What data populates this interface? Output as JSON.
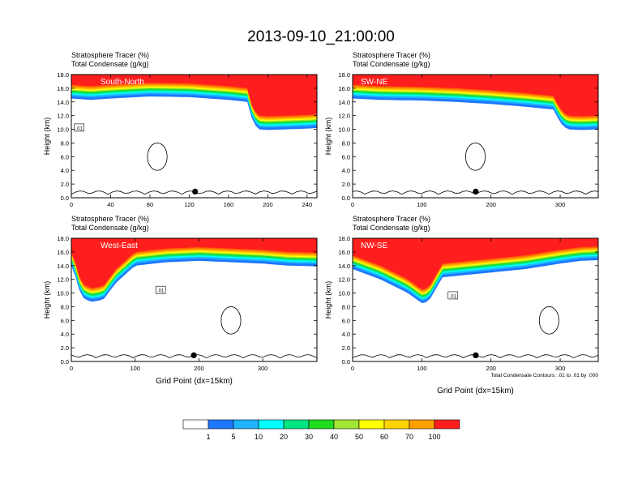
{
  "title": "2013-09-10_21:00:00",
  "colors": [
    "#ffffff",
    "#1e78ff",
    "#1eb4ff",
    "#00ffff",
    "#00e682",
    "#1edc1e",
    "#a0e632",
    "#ffff00",
    "#ffd200",
    "#ffa000",
    "#ff6400",
    "#ff1e1e"
  ],
  "colorbar": {
    "labels": [
      "1",
      "5",
      "10",
      "20",
      "30",
      "40",
      "50",
      "60",
      "70",
      "100"
    ]
  },
  "chart_data": [
    {
      "type": "contour",
      "label1": "Stratosphere Tracer   (%)",
      "label2": "Total Condensate   (g/kg)",
      "panel_tag": "South-North",
      "ylabel": "Height (km)",
      "xlabel": "",
      "xlim": [
        0,
        250
      ],
      "ylim": [
        0,
        18
      ],
      "xticks": [
        "0",
        "40",
        "80",
        "120",
        "160",
        "200",
        "240"
      ],
      "xtick_values": [
        0,
        40,
        80,
        120,
        160,
        200,
        240
      ],
      "yticks": [
        "0.0",
        "2.0",
        "4.0",
        "6.0",
        "8.0",
        "10.0",
        "12.0",
        "14.0",
        "16.0",
        "18.0"
      ],
      "marker_x": 126,
      "contour_label": ".01",
      "contour_label_at": [
        8,
        10.2
      ],
      "tropopause": [
        [
          0,
          15
        ],
        [
          20,
          14.8
        ],
        [
          40,
          15
        ],
        [
          80,
          15.3
        ],
        [
          120,
          15.2
        ],
        [
          140,
          15
        ],
        [
          160,
          14.8
        ],
        [
          180,
          14.5
        ],
        [
          184,
          11.8
        ],
        [
          190,
          10.5
        ],
        [
          200,
          10.4
        ],
        [
          220,
          10.5
        ],
        [
          240,
          10.6
        ],
        [
          250,
          10.7
        ]
      ]
    },
    {
      "type": "contour",
      "label1": "Stratosphere Tracer   (%)",
      "label2": "Total Condensate   (g/kg)",
      "panel_tag": "SW-NE",
      "ylabel": "Height (km)",
      "xlabel": "",
      "xlim": [
        0,
        355
      ],
      "ylim": [
        0,
        18
      ],
      "xticks": [
        "0",
        "100",
        "200",
        "300"
      ],
      "xtick_values": [
        0,
        100,
        200,
        300
      ],
      "yticks": [
        "0.0",
        "2.0",
        "4.0",
        "6.0",
        "8.0",
        "10.0",
        "12.0",
        "14.0",
        "16.0",
        "18.0"
      ],
      "marker_x": 178,
      "contour_label": "",
      "contour_label_at": [
        0,
        0
      ],
      "tropopause": [
        [
          0,
          15
        ],
        [
          40,
          14.8
        ],
        [
          100,
          14.7
        ],
        [
          150,
          14.5
        ],
        [
          200,
          14.2
        ],
        [
          250,
          13.8
        ],
        [
          290,
          13.4
        ],
        [
          300,
          11.5
        ],
        [
          310,
          10.5
        ],
        [
          330,
          10.4
        ],
        [
          355,
          10.5
        ]
      ]
    },
    {
      "type": "contour",
      "label1": "Stratosphere Tracer   (%)",
      "label2": "Total Condensate   (g/kg)",
      "panel_tag": "West-East",
      "ylabel": "Height (km)",
      "xlabel": "Grid Point (dx=15km)",
      "xlim": [
        0,
        385
      ],
      "ylim": [
        0,
        18
      ],
      "xticks": [
        "0",
        "100",
        "200",
        "300"
      ],
      "xtick_values": [
        0,
        100,
        200,
        300
      ],
      "yticks": [
        "0.0",
        "2.0",
        "4.0",
        "6.0",
        "8.0",
        "10.0",
        "12.0",
        "14.0",
        "16.0",
        "18.0"
      ],
      "marker_x": 192,
      "contour_label": ".01",
      "contour_label_at": [
        140,
        10.4
      ],
      "tropopause": [
        [
          0,
          14.5
        ],
        [
          10,
          12
        ],
        [
          15,
          10
        ],
        [
          30,
          9.2
        ],
        [
          50,
          9.5
        ],
        [
          70,
          12
        ],
        [
          100,
          14.5
        ],
        [
          150,
          15
        ],
        [
          200,
          15.2
        ],
        [
          250,
          15
        ],
        [
          300,
          14.8
        ],
        [
          340,
          14.5
        ],
        [
          385,
          14.4
        ]
      ]
    },
    {
      "type": "contour",
      "label1": "Stratosphere Tracer   (%)",
      "label2": "Total Condensate   (g/kg)",
      "panel_tag": "NW-SE",
      "ylabel": "Height (km)",
      "xlabel": "Grid Point (dx=15km)",
      "xlim": [
        0,
        355
      ],
      "ylim": [
        0,
        18
      ],
      "xticks": [
        "0",
        "100",
        "200",
        "300"
      ],
      "xtick_values": [
        0,
        100,
        200,
        300
      ],
      "yticks": [
        "0.0",
        "2.0",
        "4.0",
        "6.0",
        "8.0",
        "10.0",
        "12.0",
        "14.0",
        "16.0",
        "18.0"
      ],
      "marker_x": 178,
      "contour_label": ".01",
      "contour_label_at": [
        145,
        9.6
      ],
      "footnote": "Total Condensate Contours: .01 to .01 by .000",
      "tropopause": [
        [
          0,
          14
        ],
        [
          40,
          12.5
        ],
        [
          80,
          10.5
        ],
        [
          100,
          9
        ],
        [
          110,
          9.3
        ],
        [
          130,
          12.8
        ],
        [
          180,
          13.3
        ],
        [
          250,
          14
        ],
        [
          300,
          14.8
        ],
        [
          330,
          15.2
        ],
        [
          355,
          15.3
        ]
      ]
    }
  ]
}
